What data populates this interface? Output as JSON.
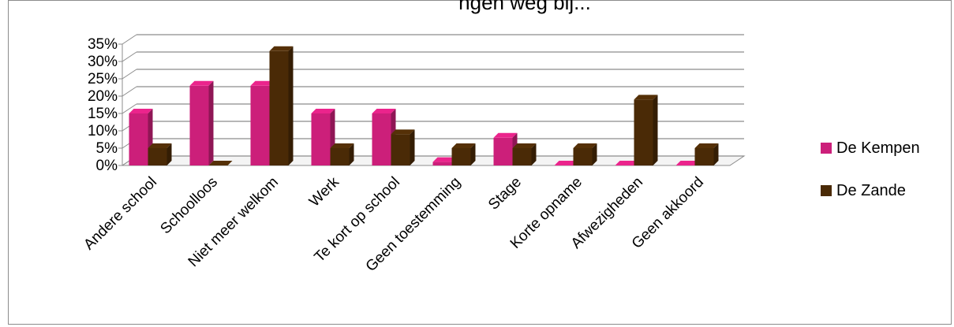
{
  "chart_data": {
    "type": "bar",
    "title": "",
    "partial_title": "ngen weg bij...",
    "categories": [
      "Andere school",
      "Schoolloos",
      "Niet meer welkom",
      "Werk",
      "Te kort op school",
      "Geen toestemming",
      "Stage",
      "Korte opname",
      "Afwezigheden",
      "Geen akkoord"
    ],
    "series": [
      {
        "name": "De Kempen",
        "color": "#cc1f7a",
        "values": [
          15,
          23,
          23,
          15,
          15,
          1,
          8,
          0,
          0,
          0
        ]
      },
      {
        "name": "De Zande",
        "color": "#4a2a06",
        "values": [
          5,
          0,
          33,
          5,
          9,
          5,
          5,
          5,
          19,
          5
        ]
      }
    ],
    "yticks": [
      "0%",
      "5%",
      "10%",
      "15%",
      "20%",
      "25%",
      "30%",
      "35%"
    ],
    "ylim": [
      0,
      35
    ],
    "grid": true,
    "legend_position": "right",
    "three_d": true
  }
}
